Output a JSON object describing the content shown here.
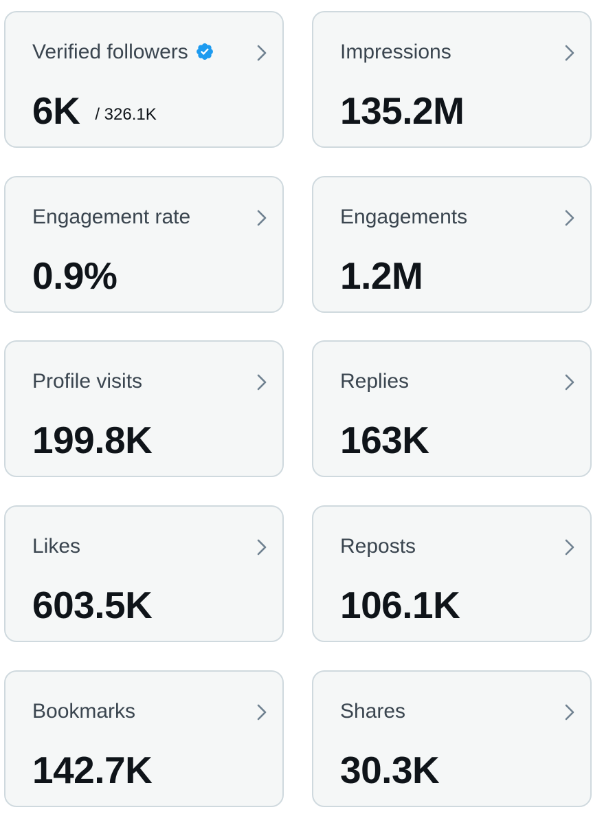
{
  "cards": [
    {
      "label": "Verified followers",
      "value": "6K",
      "sub_value": "/ 326.1K"
    },
    {
      "label": "Impressions",
      "value": "135.2M"
    },
    {
      "label": "Engagement rate",
      "value": "0.9%"
    },
    {
      "label": "Engagements",
      "value": "1.2M"
    },
    {
      "label": "Profile visits",
      "value": "199.8K"
    },
    {
      "label": "Replies",
      "value": "163K"
    },
    {
      "label": "Likes",
      "value": "603.5K"
    },
    {
      "label": "Reposts",
      "value": "106.1K"
    },
    {
      "label": "Bookmarks",
      "value": "142.7K"
    },
    {
      "label": "Shares",
      "value": "30.3K"
    }
  ],
  "icons": {
    "chevron": "chevron-right-icon",
    "verified": "verified-badge-icon"
  },
  "colors": {
    "card_background": "#f5f7f7",
    "card_border": "#cfd9de",
    "label_text": "#3a454f",
    "value_text": "#0f1419",
    "chevron": "#6f8190",
    "verified_blue": "#1d9bf0"
  }
}
